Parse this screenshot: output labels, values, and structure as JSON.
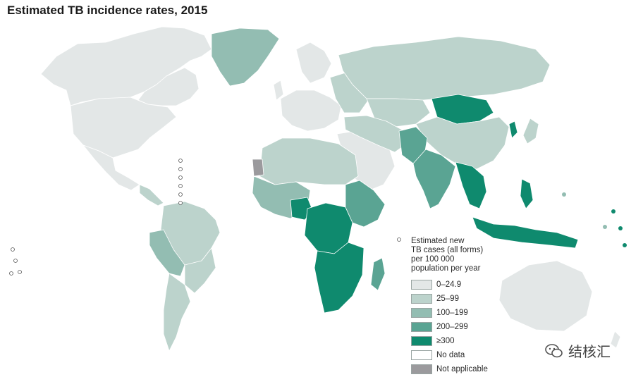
{
  "title": "Estimated TB incidence rates, 2015",
  "legend": {
    "title_lines": [
      "Estimated new",
      "TB cases (all forms)",
      "per 100 000",
      "population per year"
    ],
    "items": [
      {
        "label": "0–24.9",
        "color": "#e3e7e7"
      },
      {
        "label": "25–99",
        "color": "#bcd3cc"
      },
      {
        "label": "100–199",
        "color": "#93bdb2"
      },
      {
        "label": "200–299",
        "color": "#5aa493"
      },
      {
        "label": "≥300",
        "color": "#0f8a6e"
      },
      {
        "label": "No data",
        "color": "#ffffff"
      },
      {
        "label": "Not applicable",
        "color": "#9b9a9d"
      }
    ]
  },
  "watermark": {
    "text": "结核汇",
    "icon": "wechat-icon"
  }
}
